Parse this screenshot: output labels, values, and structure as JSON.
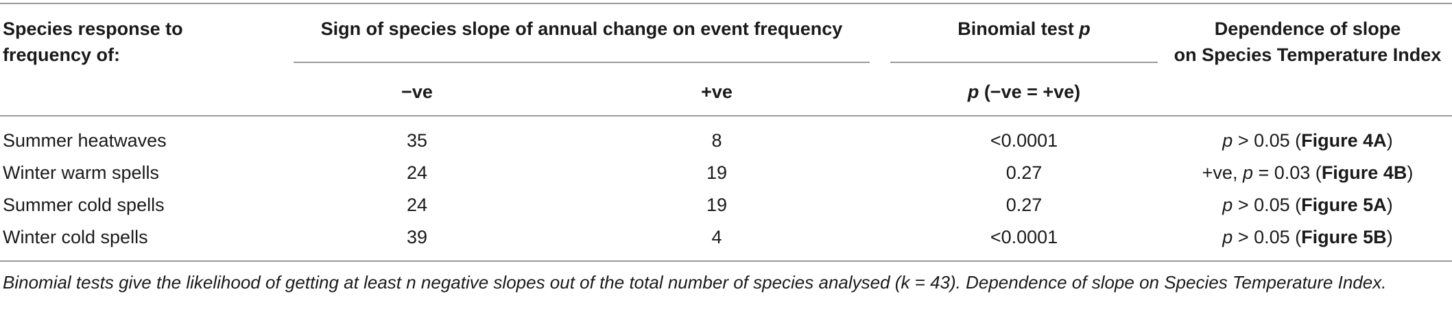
{
  "table": {
    "headers": {
      "col1": "Species response to frequency of:",
      "col1_line1": "Species response to",
      "col1_line2": "frequency of:",
      "group_sign": "Sign of species slope of annual change on event frequency",
      "group_binomial": "Binomial test p",
      "group_binomial_text": "Binomial test ",
      "group_binomial_p": "p",
      "col_dependence_line1": "Dependence of slope",
      "col_dependence_line2": "on Species Temperature Index",
      "sub_neg": "−ve",
      "sub_pos": "+ve",
      "sub_p_italic": "p",
      "sub_p_rest": " (−ve = +ve)"
    },
    "rows": [
      {
        "label": "Summer heatwaves",
        "neg": "35",
        "pos": "8",
        "p": "<0.0001",
        "dep_prefix": "",
        "dep_p": "p",
        "dep_rel": " > 0.05 (",
        "dep_fig": "Figure 4A",
        "dep_close": ")"
      },
      {
        "label": "Winter warm spells",
        "neg": "24",
        "pos": "19",
        "p": "0.27",
        "dep_prefix": "+ve, ",
        "dep_p": "p",
        "dep_rel": " = 0.03 (",
        "dep_fig": "Figure 4B",
        "dep_close": ")"
      },
      {
        "label": "Summer cold spells",
        "neg": "24",
        "pos": "19",
        "p": "0.27",
        "dep_prefix": "",
        "dep_p": "p",
        "dep_rel": " > 0.05 (",
        "dep_fig": "Figure 5A",
        "dep_close": ")"
      },
      {
        "label": "Winter cold spells",
        "neg": "39",
        "pos": "4",
        "p": "<0.0001",
        "dep_prefix": "",
        "dep_p": "p",
        "dep_rel": " > 0.05 (",
        "dep_fig": "Figure 5B",
        "dep_close": ")"
      }
    ]
  },
  "caption": "Binomial tests give the likelihood of getting at least n negative slopes out of the total number of species analysed (k = 43). Dependence of slope on Species Temperature Index."
}
